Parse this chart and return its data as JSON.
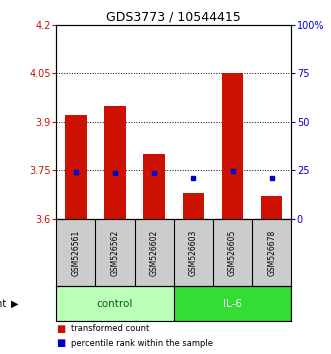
{
  "title": "GDS3773 / 10544415",
  "samples": [
    "GSM526561",
    "GSM526562",
    "GSM526602",
    "GSM526603",
    "GSM526605",
    "GSM526678"
  ],
  "transformed_counts": [
    3.92,
    3.95,
    3.8,
    3.68,
    4.05,
    3.67
  ],
  "percentile_ranks": [
    3.744,
    3.742,
    3.74,
    3.727,
    3.748,
    3.726
  ],
  "bar_bottom": 3.6,
  "ylim": [
    3.6,
    4.2
  ],
  "yticks": [
    3.6,
    3.75,
    3.9,
    4.05,
    4.2
  ],
  "ytick_labels_left": [
    "3.6",
    "3.75",
    "3.9",
    "4.05",
    "4.2"
  ],
  "ytick_labels_right": [
    "0",
    "25",
    "50",
    "75",
    "100%"
  ],
  "hlines": [
    3.75,
    3.9,
    4.05
  ],
  "bar_color": "#cc1100",
  "percentile_color": "#0000cc",
  "control_bg": "#bbffbb",
  "il6_bg": "#33dd33",
  "sample_bg": "#cccccc",
  "bar_width": 0.55,
  "left_tick_color": "#cc1100",
  "right_tick_color": "#0000cc",
  "title_fontsize": 9,
  "tick_fontsize": 7,
  "sample_fontsize": 5.5,
  "group_fontsize": 7.5,
  "legend_fontsize": 6,
  "agent_fontsize": 7
}
